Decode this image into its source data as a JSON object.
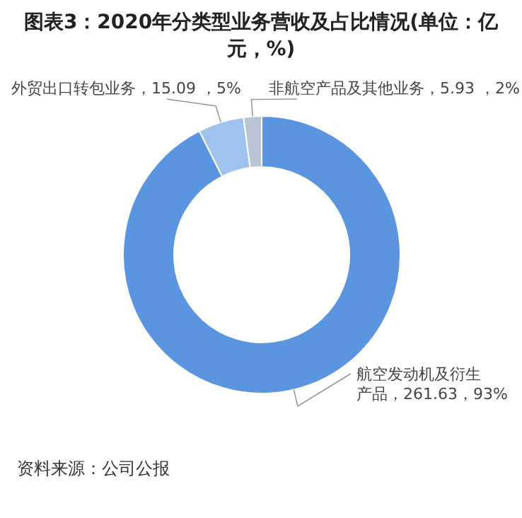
{
  "chart_data": {
    "type": "donut",
    "title": "图表3：2020年分类型业务营收及占比情况(单位：亿元，%)",
    "categories": [
      "航空发动机及衍生产品",
      "外贸出口转包业务",
      "非航空产品及其他业务"
    ],
    "values": [
      261.63,
      15.09,
      5.93
    ],
    "value_labels": [
      "261.63，93%",
      "15.09 ，5%",
      "5.93 ，2%"
    ],
    "colors": [
      "#5b95e0",
      "#9fc3ee",
      "#b8c4d4"
    ],
    "legend": false,
    "annotations": [
      "资料来源：公司公报"
    ]
  }
}
